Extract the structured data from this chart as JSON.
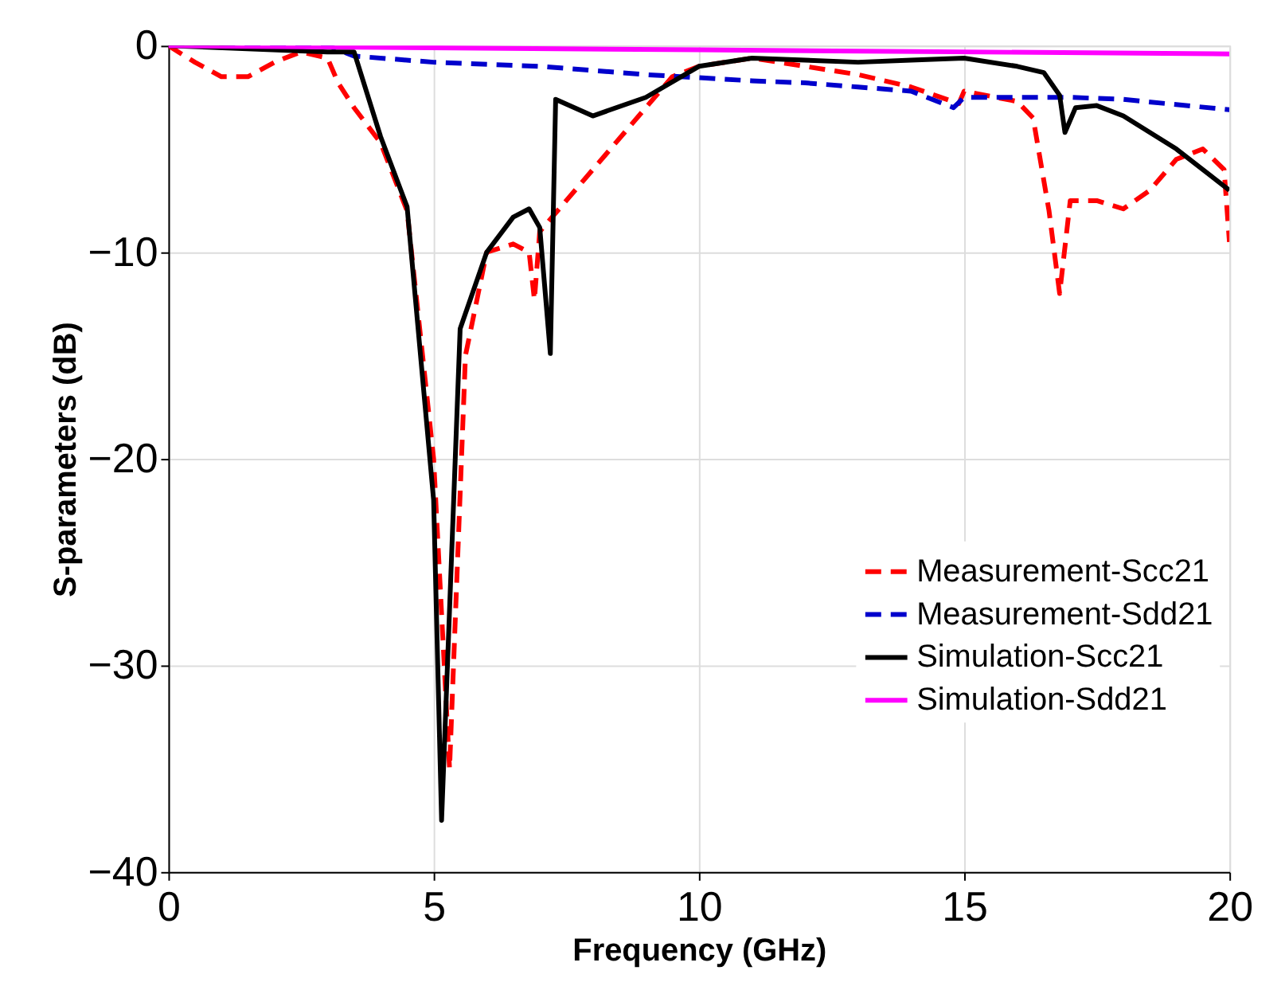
{
  "chart_data": {
    "type": "line",
    "xlabel": "Frequency (GHz)",
    "ylabel": "S-parameters (dB)",
    "xlim": [
      0,
      20
    ],
    "xticks": [
      0,
      5,
      10,
      15,
      20
    ],
    "ylim": [
      -40,
      0
    ],
    "yticks": [
      -40,
      -30,
      -20,
      -10,
      0
    ],
    "grid": true,
    "legend": "right",
    "series": [
      {
        "name": "Measurement-Scc21",
        "color": "#ff0000",
        "line_style": "dashed",
        "x": [
          0,
          0.5,
          1,
          1.5,
          2,
          2.5,
          3,
          3.2,
          3.5,
          4,
          4.5,
          5,
          5.3,
          5.6,
          6,
          6.5,
          6.8,
          6.9,
          7,
          7.5,
          8,
          9,
          9.5,
          10,
          11,
          12,
          13,
          14,
          14.9,
          15,
          16,
          16.3,
          16.6,
          16.8,
          17,
          17.5,
          18,
          18.5,
          19,
          19.5,
          19.9,
          20
        ],
        "values": [
          0,
          -0.8,
          -1.5,
          -1.5,
          -0.8,
          -0.3,
          -0.6,
          -1.8,
          -3,
          -4.7,
          -8,
          -20,
          -35,
          -15,
          -10,
          -9.6,
          -10,
          -12.3,
          -9,
          -7.5,
          -6,
          -3,
          -1.5,
          -1,
          -0.6,
          -1,
          -1.4,
          -2,
          -2.8,
          -2.2,
          -2.7,
          -3.5,
          -8,
          -12,
          -7.5,
          -7.5,
          -7.9,
          -7,
          -5.5,
          -5,
          -6,
          -9.5
        ]
      },
      {
        "name": "Measurement-Sdd21",
        "color": "#0000cc",
        "line_style": "dashed",
        "x": [
          0,
          3,
          3.5,
          5,
          7,
          9,
          11,
          12,
          13,
          14,
          14.8,
          15,
          17,
          18,
          20
        ],
        "values": [
          0,
          0,
          -0.5,
          -0.8,
          -1.0,
          -1.4,
          -1.7,
          -1.8,
          -2.0,
          -2.2,
          -3.0,
          -2.5,
          -2.5,
          -2.6,
          -3.1
        ]
      },
      {
        "name": "Simulation-Scc21",
        "color": "#000000",
        "line_style": "solid",
        "x": [
          0,
          3,
          3.5,
          4,
          4.5,
          5,
          5.15,
          5.5,
          6,
          6.5,
          6.8,
          7,
          7.2,
          7.3,
          8,
          9,
          10,
          11,
          13,
          14,
          15,
          16,
          16.5,
          16.8,
          16.9,
          17.1,
          17.5,
          18,
          19,
          20
        ],
        "values": [
          0,
          -0.3,
          -0.3,
          -4.4,
          -7.8,
          -22,
          -37.5,
          -13.7,
          -10,
          -8.3,
          -7.9,
          -8.8,
          -14.9,
          -2.6,
          -3.4,
          -2.5,
          -1.0,
          -0.6,
          -0.8,
          -0.7,
          -0.6,
          -1.0,
          -1.3,
          -2.4,
          -4.2,
          -3,
          -2.9,
          -3.4,
          -5.0,
          -7
        ]
      },
      {
        "name": "Simulation-Sdd21",
        "color": "#ff00ff",
        "line_style": "solid",
        "x": [
          0,
          10,
          20
        ],
        "values": [
          0,
          -0.2,
          -0.4
        ]
      }
    ]
  }
}
